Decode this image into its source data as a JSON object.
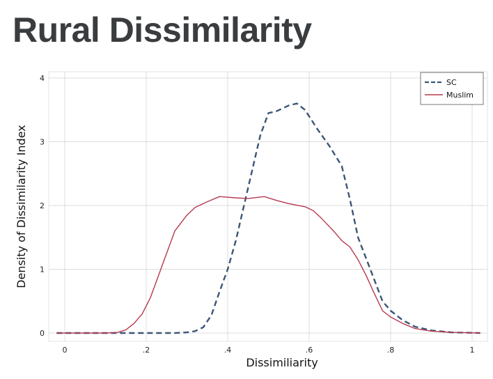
{
  "page": {
    "title": "Rural Dissimilarity"
  },
  "chart_data": {
    "type": "line",
    "title": "",
    "xlabel": "Dissimiliarity",
    "ylabel": "Density of Dissimilarity Index",
    "xlim": [
      0,
      1
    ],
    "ylim": [
      0,
      4
    ],
    "x_ticks": [
      0,
      0.2,
      0.4,
      0.6,
      0.8,
      1
    ],
    "x_tick_labels": [
      "0",
      ".2",
      ".4",
      ".6",
      ".8",
      "1"
    ],
    "y_ticks": [
      0,
      1,
      2,
      3,
      4
    ],
    "y_tick_labels": [
      "0",
      "1",
      "2",
      "3",
      "4"
    ],
    "grid": true,
    "legend_position": "top-right",
    "series": [
      {
        "name": "SC",
        "color": "#3b5675",
        "style": "dashed",
        "points": [
          [
            -0.02,
            0
          ],
          [
            0.1,
            0
          ],
          [
            0.2,
            0
          ],
          [
            0.27,
            0
          ],
          [
            0.3,
            0.01
          ],
          [
            0.32,
            0.03
          ],
          [
            0.34,
            0.09
          ],
          [
            0.36,
            0.28
          ],
          [
            0.38,
            0.65
          ],
          [
            0.4,
            1.0
          ],
          [
            0.42,
            1.45
          ],
          [
            0.44,
            2.0
          ],
          [
            0.46,
            2.55
          ],
          [
            0.48,
            3.1
          ],
          [
            0.5,
            3.45
          ],
          [
            0.52,
            3.48
          ],
          [
            0.55,
            3.57
          ],
          [
            0.57,
            3.6
          ],
          [
            0.59,
            3.5
          ],
          [
            0.62,
            3.2
          ],
          [
            0.65,
            2.93
          ],
          [
            0.68,
            2.62
          ],
          [
            0.7,
            2.1
          ],
          [
            0.72,
            1.5
          ],
          [
            0.75,
            1.0
          ],
          [
            0.78,
            0.5
          ],
          [
            0.8,
            0.35
          ],
          [
            0.83,
            0.2
          ],
          [
            0.86,
            0.1
          ],
          [
            0.9,
            0.04
          ],
          [
            0.95,
            0.01
          ],
          [
            1.02,
            0
          ]
        ]
      },
      {
        "name": "Muslim",
        "color": "#b5394f",
        "style": "solid",
        "points": [
          [
            -0.02,
            0
          ],
          [
            0.1,
            0
          ],
          [
            0.13,
            0.01
          ],
          [
            0.15,
            0.05
          ],
          [
            0.17,
            0.15
          ],
          [
            0.19,
            0.3
          ],
          [
            0.21,
            0.55
          ],
          [
            0.23,
            0.9
          ],
          [
            0.25,
            1.25
          ],
          [
            0.27,
            1.6
          ],
          [
            0.3,
            1.85
          ],
          [
            0.32,
            1.97
          ],
          [
            0.35,
            2.06
          ],
          [
            0.38,
            2.14
          ],
          [
            0.42,
            2.12
          ],
          [
            0.45,
            2.11
          ],
          [
            0.49,
            2.14
          ],
          [
            0.52,
            2.08
          ],
          [
            0.55,
            2.03
          ],
          [
            0.59,
            1.98
          ],
          [
            0.61,
            1.92
          ],
          [
            0.63,
            1.8
          ],
          [
            0.66,
            1.6
          ],
          [
            0.68,
            1.45
          ],
          [
            0.7,
            1.35
          ],
          [
            0.72,
            1.15
          ],
          [
            0.74,
            0.9
          ],
          [
            0.76,
            0.62
          ],
          [
            0.78,
            0.35
          ],
          [
            0.8,
            0.25
          ],
          [
            0.83,
            0.15
          ],
          [
            0.86,
            0.07
          ],
          [
            0.9,
            0.03
          ],
          [
            0.95,
            0.01
          ],
          [
            1.02,
            0
          ]
        ]
      }
    ]
  }
}
